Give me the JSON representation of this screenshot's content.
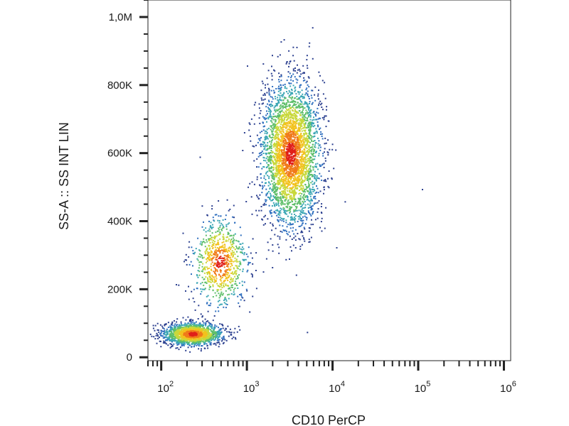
{
  "chart_data": {
    "type": "scatter",
    "subtype": "flow-cytometry density dot plot",
    "xlabel": "CD10 PerCP",
    "ylabel": "SS-A :: SS INT LIN",
    "x_scale": "log",
    "y_scale": "linear",
    "xlim": [
      70,
      1200000
    ],
    "ylim": [
      -10000,
      1050000
    ],
    "x_ticks": [
      {
        "value": 100,
        "base": "10",
        "exp": "2"
      },
      {
        "value": 1000,
        "base": "10",
        "exp": "3"
      },
      {
        "value": 10000,
        "base": "10",
        "exp": "4"
      },
      {
        "value": 100000,
        "base": "10",
        "exp": "5"
      },
      {
        "value": 1000000,
        "base": "10",
        "exp": "6"
      }
    ],
    "y_ticks": [
      {
        "value": 0,
        "label": "0"
      },
      {
        "value": 200000,
        "label": "200K"
      },
      {
        "value": 400000,
        "label": "400K"
      },
      {
        "value": 600000,
        "label": "600K"
      },
      {
        "value": 800000,
        "label": "800K"
      },
      {
        "value": 1000000,
        "label": "1,0M"
      }
    ],
    "grid": false,
    "legend": "none",
    "density_colors": [
      "#2b3f8f",
      "#2f6fbf",
      "#3aa6b4",
      "#5fbf6a",
      "#c8d83a",
      "#f2c21e",
      "#f07a1a",
      "#e0201a"
    ],
    "populations": [
      {
        "name": "",
        "center_x": 230,
        "center_y": 70000,
        "spread_log_x": 0.17,
        "spread_y": 16000,
        "events": 1700
      },
      {
        "name": "",
        "center_x": 480,
        "center_y": 280000,
        "spread_log_x": 0.16,
        "spread_y": 65000,
        "events": 800
      },
      {
        "name": "",
        "center_x": 3200,
        "center_y": 600000,
        "spread_log_x": 0.17,
        "spread_y": 105000,
        "events": 3400
      }
    ],
    "outlier_points": [
      {
        "x": 110000,
        "y": 495000
      },
      {
        "x": 5000,
        "y": 75000
      },
      {
        "x": 280,
        "y": 590000
      }
    ]
  }
}
